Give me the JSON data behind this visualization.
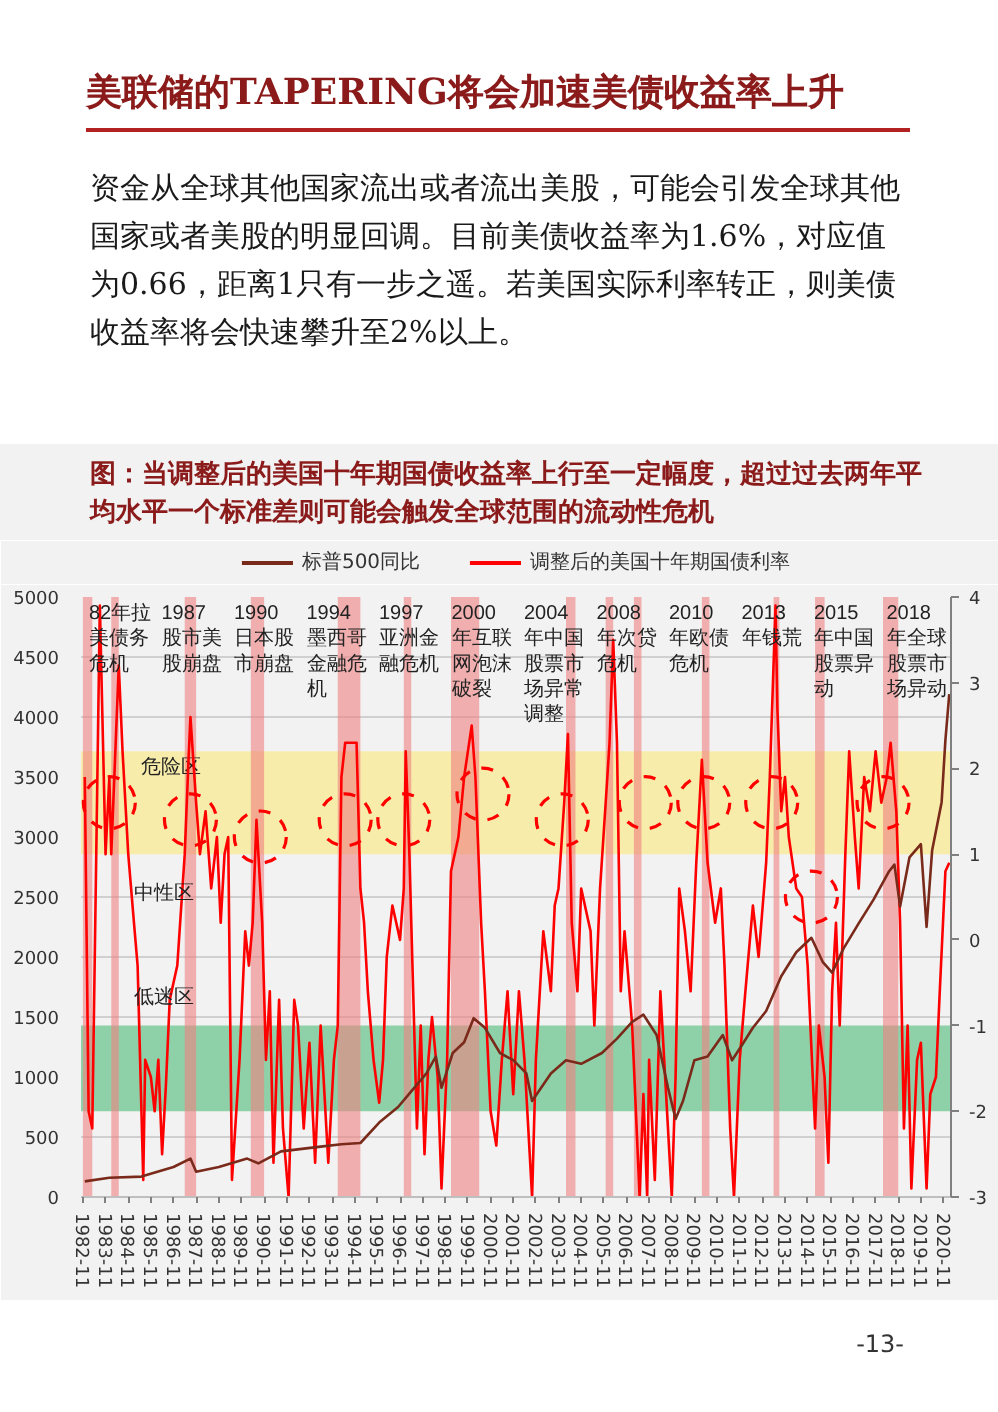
{
  "chart_data": {
    "type": "line",
    "title": "美联储的TAPERING将会加速美债收益率上升",
    "subtitle": "资金从全球其他国家流出或者流出美股，可能会引发全球其他国家或者美股的明显回调。目前美债收益率为1.6%，对应值为0.66，距离1只有一步之遥。若美国实际利率转正，则美债收益率将会快速攀升至2%以上。",
    "xlim": [
      "1982-10",
      "2021-03"
    ],
    "xticks": [
      "1982-11",
      "1983-11",
      "1984-11",
      "1985-11",
      "1986-11",
      "1987-11",
      "1988-11",
      "1989-11",
      "1990-11",
      "1991-11",
      "1992-11",
      "1993-11",
      "1994-11",
      "1995-11",
      "1996-11",
      "1997-11",
      "1998-11",
      "1999-11",
      "2000-11",
      "2001-11",
      "2002-11",
      "2003-11",
      "2004-11",
      "2005-11",
      "2006-11",
      "2007-11",
      "2008-11",
      "2009-11",
      "2010-11",
      "2011-11",
      "2012-11",
      "2013-11",
      "2014-11",
      "2015-11",
      "2016-11",
      "2017-11",
      "2018-11",
      "2019-11",
      "2020-11"
    ],
    "ylim": [
      0,
      5000
    ],
    "yticks": [
      0,
      500,
      1000,
      1500,
      2000,
      2500,
      3000,
      3500,
      4000,
      4500,
      5000
    ],
    "y2lim": [
      -3,
      4
    ],
    "y2ticks": [
      -3,
      -2,
      -1,
      0,
      1,
      2,
      3,
      4
    ],
    "grid": "y",
    "legend": "top",
    "series": [
      {
        "name": "标普500同比",
        "color": "#7a2a1a",
        "x": [
          "1982-12",
          "1984-01",
          "1985-06",
          "1986-11",
          "1987-08",
          "1987-11",
          "1988-11",
          "1990-02",
          "1990-08",
          "1991-08",
          "1993-05",
          "1994-04",
          "1995-02",
          "1995-12",
          "1996-10",
          "1997-05",
          "1998-01",
          "1998-06",
          "1998-09",
          "1999-03",
          "1999-09",
          "2000-02",
          "2000-08",
          "2001-04",
          "2001-11",
          "2002-06",
          "2002-09",
          "2003-07",
          "2004-03",
          "2004-11",
          "2005-10",
          "2006-06",
          "2007-02",
          "2007-08",
          "2008-03",
          "2008-09",
          "2009-01",
          "2009-05",
          "2009-11",
          "2010-06",
          "2011-02",
          "2011-07",
          "2011-12",
          "2012-06",
          "2013-01",
          "2013-09",
          "2014-05",
          "2015-01",
          "2015-07",
          "2015-12",
          "2016-06",
          "2017-02",
          "2017-10",
          "2018-06",
          "2018-09",
          "2018-12",
          "2019-05",
          "2019-11",
          "2020-02",
          "2020-05",
          "2020-10",
          "2020-12",
          "2021-02"
        ],
        "values": [
          130,
          160,
          170,
          250,
          320,
          210,
          250,
          320,
          280,
          380,
          420,
          440,
          450,
          620,
          750,
          880,
          1030,
          1170,
          910,
          1200,
          1290,
          1490,
          1410,
          1200,
          1140,
          1030,
          800,
          1030,
          1140,
          1110,
          1200,
          1320,
          1460,
          1520,
          1350,
          910,
          650,
          800,
          1140,
          1170,
          1350,
          1140,
          1260,
          1410,
          1550,
          1840,
          2040,
          2160,
          1960,
          1870,
          2070,
          2280,
          2480,
          2710,
          2770,
          2420,
          2830,
          2940,
          2250,
          2890,
          3290,
          3810,
          4190
        ]
      },
      {
        "name": "调整后的美国十年期国债利率",
        "color": "#ff0000",
        "axis": "y2",
        "x": [
          "1982-12",
          "1983-02",
          "1983-04",
          "1983-08",
          "1983-11",
          "1984-01",
          "1984-02",
          "1984-06",
          "1984-08",
          "1984-11",
          "1985-02",
          "1985-04",
          "1985-07",
          "1985-08",
          "1985-11",
          "1986-01",
          "1986-03",
          "1986-05",
          "1986-07",
          "1986-09",
          "1987-01",
          "1987-05",
          "1987-07",
          "1987-08",
          "1987-11",
          "1988-01",
          "1988-04",
          "1988-07",
          "1988-10",
          "1988-12",
          "1989-02",
          "1989-04",
          "1989-06",
          "1989-10",
          "1990-01",
          "1990-03",
          "1990-05",
          "1990-07",
          "1990-10",
          "1990-12",
          "1991-02",
          "1991-04",
          "1991-07",
          "1991-09",
          "1991-12",
          "1992-03",
          "1992-05",
          "1992-08",
          "1992-11",
          "1993-02",
          "1993-05",
          "1993-09",
          "1993-12",
          "1994-02",
          "1994-04",
          "1994-06",
          "1994-10",
          "1994-12",
          "1995-02",
          "1995-04",
          "1995-06",
          "1995-09",
          "1995-12",
          "1996-02",
          "1996-04",
          "1996-07",
          "1996-09",
          "1996-11",
          "1997-01",
          "1997-02",
          "1997-04",
          "1997-06",
          "1997-08",
          "1997-10",
          "1997-12",
          "1998-02",
          "1998-04",
          "1998-07",
          "1998-09",
          "1998-12",
          "1999-02",
          "1999-06",
          "1999-09",
          "2000-01",
          "2000-03",
          "2000-06",
          "2000-08",
          "2000-11",
          "2001-02",
          "2001-05",
          "2001-08",
          "2001-11",
          "2002-02",
          "2002-05",
          "2002-09",
          "2002-11",
          "2003-03",
          "2003-07",
          "2003-09",
          "2003-11",
          "2004-02",
          "2004-04",
          "2004-06",
          "2004-09",
          "2004-11",
          "2005-04",
          "2005-06",
          "2005-09",
          "2005-12",
          "2006-02",
          "2006-04",
          "2006-06",
          "2006-08",
          "2006-10",
          "2007-02",
          "2007-06",
          "2007-08",
          "2007-10",
          "2007-11",
          "2008-02",
          "2008-05",
          "2008-08",
          "2008-11",
          "2009-01",
          "2009-03",
          "2009-06",
          "2009-09",
          "2009-12",
          "2010-03",
          "2010-06",
          "2010-10",
          "2011-01",
          "2011-03",
          "2011-06",
          "2011-08",
          "2011-11",
          "2012-02",
          "2012-06",
          "2012-09",
          "2013-01",
          "2013-03",
          "2013-06",
          "2013-07",
          "2013-09",
          "2013-11",
          "2014-01",
          "2014-05",
          "2014-08",
          "2014-11",
          "2015-03",
          "2015-05",
          "2015-08",
          "2015-10",
          "2015-12",
          "2016-02",
          "2016-04",
          "2016-07",
          "2016-09",
          "2016-12",
          "2017-02",
          "2017-05",
          "2017-08",
          "2017-11",
          "2018-02",
          "2018-05",
          "2018-07",
          "2018-10",
          "2018-12",
          "2019-02",
          "2019-04",
          "2019-06",
          "2019-09",
          "2019-11",
          "2020-02",
          "2020-04",
          "2020-07",
          "2020-09",
          "2020-12",
          "2021-02"
        ],
        "values": [
          1.9,
          -2.0,
          -2.2,
          3.9,
          1.0,
          1.9,
          1.0,
          3.2,
          2.2,
          1.0,
          0.2,
          -0.3,
          -2.8,
          -1.4,
          -1.6,
          -2.0,
          -1.4,
          -2.5,
          -1.7,
          -0.7,
          -0.3,
          1.0,
          2.1,
          2.6,
          1.6,
          1.0,
          1.5,
          0.6,
          1.2,
          0.2,
          1.0,
          1.2,
          -2.8,
          -1.4,
          0.1,
          -0.3,
          0.2,
          1.4,
          0.2,
          -1.4,
          -0.6,
          -2.6,
          -0.7,
          -2.2,
          -3.0,
          -0.7,
          -1.0,
          -2.2,
          -1.2,
          -2.6,
          -1.0,
          -2.6,
          -1.4,
          -1.0,
          1.9,
          2.3,
          2.3,
          2.3,
          0.6,
          0.2,
          -0.6,
          -1.4,
          -1.9,
          -1.4,
          -0.2,
          0.4,
          0.2,
          0.0,
          0.6,
          2.2,
          1.0,
          -0.6,
          -2.2,
          -1.0,
          -2.5,
          -1.4,
          -0.9,
          -1.6,
          -2.9,
          -1.4,
          0.8,
          1.2,
          1.9,
          2.5,
          1.9,
          0.2,
          -0.6,
          -2.0,
          -2.4,
          -1.4,
          -0.6,
          -1.8,
          -0.6,
          -1.4,
          -3.0,
          -1.4,
          0.1,
          -0.6,
          0.4,
          0.6,
          1.6,
          2.4,
          0.2,
          -0.6,
          0.6,
          0.1,
          -1.0,
          0.6,
          1.6,
          2.3,
          3.5,
          2.3,
          -0.6,
          0.1,
          -1.0,
          -3.0,
          -1.8,
          -3.0,
          -1.4,
          -2.8,
          -0.6,
          -1.8,
          -3.0,
          -1.6,
          0.6,
          0.1,
          -0.6,
          0.9,
          2.1,
          0.9,
          0.2,
          0.6,
          -0.3,
          -2.2,
          -3.0,
          -1.4,
          -0.6,
          0.4,
          -0.2,
          0.9,
          1.9,
          3.9,
          2.7,
          1.5,
          1.9,
          1.2,
          0.6,
          0.5,
          -0.3,
          -2.2,
          -1.0,
          -1.6,
          -2.6,
          -0.6,
          0.2,
          -1.0,
          1.0,
          2.2,
          1.2,
          0.6,
          1.9,
          1.5,
          2.2,
          1.6,
          1.9,
          2.3,
          1.5,
          0.2,
          -2.2,
          -1.0,
          -2.9,
          -1.4,
          -1.2,
          -2.9,
          -1.8,
          -1.6,
          -0.6,
          0.8,
          0.9
        ]
      },
      {
        "type": "scatter",
        "color": "#ff0000",
        "axis": "y2",
        "marker": "circle",
        "line_style": "dashed",
        "x": [
          "1984-01",
          "1987-08",
          "1990-09",
          "1994-06",
          "1997-01",
          "2000-07",
          "2004-01",
          "2007-09",
          "2010-04",
          "2013-04",
          "2015-01",
          "2018-03"
        ],
        "values": [
          1.6,
          1.4,
          1.2,
          1.4,
          1.4,
          1.7,
          1.4,
          1.6,
          1.6,
          1.6,
          0.5,
          1.6
        ]
      }
    ],
    "bands": [
      {
        "axis": "y2",
        "from": 1,
        "to": 2.2,
        "color": "#f7ecaa",
        "label": "危险区"
      },
      {
        "axis": "y2",
        "from": -2,
        "to": -1,
        "color": "#8ed1a8"
      },
      {
        "axis": "x",
        "from": "1982-11",
        "to": "1983-04",
        "color": "#ef8080"
      },
      {
        "axis": "x",
        "from": "1984-02",
        "to": "1984-06",
        "color": "#ef8080"
      },
      {
        "axis": "x",
        "from": "1987-05",
        "to": "1987-11",
        "color": "#ef8080"
      },
      {
        "axis": "x",
        "from": "1990-04",
        "to": "1990-11",
        "color": "#ef8080"
      },
      {
        "axis": "x",
        "from": "1994-02",
        "to": "1995-02",
        "color": "#ef8080"
      },
      {
        "axis": "x",
        "from": "1997-01",
        "to": "1997-05",
        "color": "#ef8080"
      },
      {
        "axis": "x",
        "from": "1999-02",
        "to": "2000-05",
        "color": "#ef8080"
      },
      {
        "axis": "x",
        "from": "2004-03",
        "to": "2004-08",
        "color": "#ef8080"
      },
      {
        "axis": "x",
        "from": "2005-12",
        "to": "2006-04",
        "color": "#ef8080"
      },
      {
        "axis": "x",
        "from": "2007-03",
        "to": "2007-07",
        "color": "#ef8080"
      },
      {
        "axis": "x",
        "from": "2010-03",
        "to": "2010-07",
        "color": "#ef8080"
      },
      {
        "axis": "x",
        "from": "2013-05",
        "to": "2013-08",
        "color": "#ef8080"
      },
      {
        "axis": "x",
        "from": "2015-03",
        "to": "2015-08",
        "color": "#ef8080"
      },
      {
        "axis": "x",
        "from": "2018-03",
        "to": "2018-11",
        "color": "#ef8080"
      }
    ],
    "annotations": [
      "图：当调整后的美国十年期国债收益率上行至一定幅度，超过过去两年平均水平一个标准差则可能会触发全球范围的流动性危机",
      "82年拉美债务危机",
      "1987股市美股崩盘",
      "1990日本股市崩盘",
      "1994墨西哥金融危机",
      "1997亚洲金融危机",
      "2000年互联网泡沫破裂",
      "2004年中国股票市场异常调整",
      "2008年次贷危机",
      "2010年欧债危机",
      "2013年钱荒",
      "2015年中国股票异动",
      "2018年全球股票市场异动",
      {
        "text": "中性区",
        "x": "1985-02",
        "y": 2620
      },
      {
        "text": "低迷区",
        "x": "1985-02",
        "y": 1750
      },
      "-13-"
    ]
  }
}
